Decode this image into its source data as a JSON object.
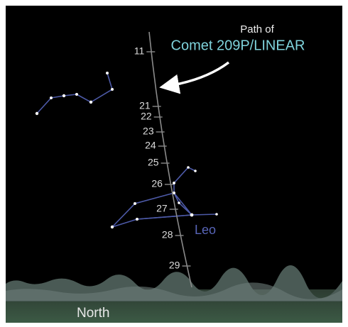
{
  "annotation": {
    "line1": "Path of",
    "line2": "Comet 209P/LINEAR"
  },
  "path_dates": [
    11,
    21,
    22,
    23,
    24,
    25,
    26,
    27,
    28,
    29
  ],
  "constellation_label": "Leo",
  "direction_label": "North"
}
